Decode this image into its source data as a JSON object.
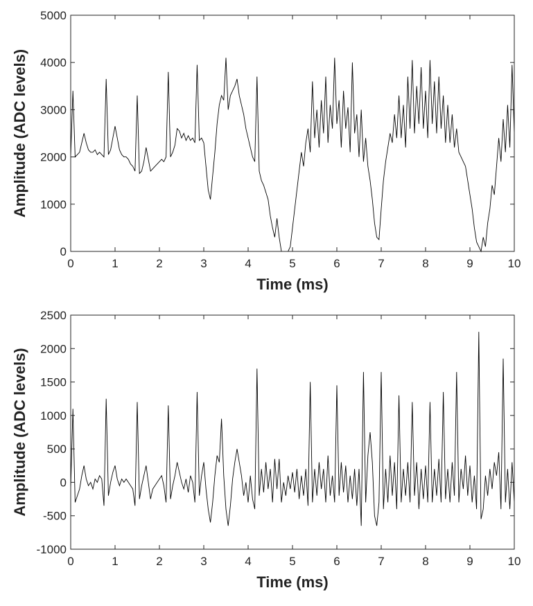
{
  "chart_data": [
    {
      "type": "line",
      "xlabel": "Time (ms)",
      "ylabel": "Amplitude (ADC levels)",
      "color": "#000000",
      "xlim": [
        0,
        10
      ],
      "ylim": [
        0,
        5000
      ],
      "xticks": [
        0,
        1,
        2,
        3,
        4,
        5,
        6,
        7,
        8,
        9,
        10
      ],
      "yticks": [
        0,
        1000,
        2000,
        3000,
        4000,
        5000
      ],
      "x": [
        0,
        0.05,
        0.1,
        0.15,
        0.2,
        0.25,
        0.3,
        0.35,
        0.4,
        0.45,
        0.5,
        0.55,
        0.6,
        0.65,
        0.7,
        0.75,
        0.8,
        0.85,
        0.9,
        0.95,
        1,
        1.05,
        1.1,
        1.15,
        1.2,
        1.25,
        1.3,
        1.35,
        1.4,
        1.45,
        1.5,
        1.55,
        1.6,
        1.65,
        1.7,
        1.75,
        1.8,
        1.85,
        1.9,
        1.95,
        2,
        2.05,
        2.1,
        2.15,
        2.2,
        2.25,
        2.3,
        2.35,
        2.4,
        2.45,
        2.5,
        2.55,
        2.6,
        2.65,
        2.7,
        2.75,
        2.8,
        2.85,
        2.9,
        2.95,
        3,
        3.05,
        3.1,
        3.15,
        3.2,
        3.25,
        3.3,
        3.35,
        3.4,
        3.45,
        3.5,
        3.55,
        3.6,
        3.65,
        3.7,
        3.75,
        3.8,
        3.85,
        3.9,
        3.95,
        4,
        4.05,
        4.1,
        4.15,
        4.2,
        4.25,
        4.3,
        4.35,
        4.4,
        4.45,
        4.5,
        4.55,
        4.6,
        4.65,
        4.7,
        4.75,
        4.8,
        4.85,
        4.9,
        4.95,
        5,
        5.05,
        5.1,
        5.15,
        5.2,
        5.25,
        5.3,
        5.35,
        5.4,
        5.45,
        5.5,
        5.55,
        5.6,
        5.65,
        5.7,
        5.75,
        5.8,
        5.85,
        5.9,
        5.95,
        6,
        6.05,
        6.1,
        6.15,
        6.2,
        6.25,
        6.3,
        6.35,
        6.4,
        6.45,
        6.5,
        6.55,
        6.6,
        6.65,
        6.7,
        6.75,
        6.8,
        6.85,
        6.9,
        6.95,
        7,
        7.05,
        7.1,
        7.15,
        7.2,
        7.25,
        7.3,
        7.35,
        7.4,
        7.45,
        7.5,
        7.55,
        7.6,
        7.65,
        7.7,
        7.75,
        7.8,
        7.85,
        7.9,
        7.95,
        8,
        8.05,
        8.1,
        8.15,
        8.2,
        8.25,
        8.3,
        8.35,
        8.4,
        8.45,
        8.5,
        8.55,
        8.6,
        8.65,
        8.7,
        8.75,
        8.8,
        8.85,
        8.9,
        8.95,
        9,
        9.05,
        9.1,
        9.15,
        9.2,
        9.25,
        9.3,
        9.35,
        9.4,
        9.45,
        9.5,
        9.55,
        9.6,
        9.65,
        9.7,
        9.75,
        9.8,
        9.85,
        9.9,
        9.95,
        10
      ],
      "values": [
        2000,
        3400,
        2000,
        2050,
        2100,
        2300,
        2500,
        2300,
        2150,
        2100,
        2100,
        2150,
        2050,
        2100,
        2050,
        2000,
        3650,
        2050,
        2150,
        2400,
        2650,
        2400,
        2150,
        2050,
        2000,
        2000,
        1950,
        1850,
        1800,
        1700,
        3300,
        1650,
        1700,
        1900,
        2200,
        1950,
        1700,
        1750,
        1800,
        1850,
        1900,
        1950,
        1900,
        2000,
        3800,
        2000,
        2100,
        2250,
        2600,
        2550,
        2400,
        2500,
        2350,
        2450,
        2350,
        2400,
        2300,
        3950,
        2350,
        2400,
        2300,
        1800,
        1300,
        1100,
        1600,
        2100,
        2700,
        3100,
        3300,
        3200,
        4100,
        3000,
        3300,
        3400,
        3500,
        3650,
        3300,
        3100,
        2900,
        2600,
        2400,
        2200,
        2000,
        1900,
        3700,
        1700,
        1500,
        1400,
        1250,
        1100,
        750,
        500,
        300,
        700,
        300,
        0,
        0,
        0,
        0,
        100,
        500,
        900,
        1300,
        1700,
        2100,
        1800,
        2300,
        2600,
        2100,
        3600,
        2400,
        3000,
        2200,
        3200,
        2500,
        3700,
        2300,
        3100,
        2600,
        4100,
        2700,
        3200,
        2200,
        3400,
        2600,
        3050,
        2100,
        4000,
        2500,
        2900,
        2000,
        3000,
        1900,
        2400,
        1800,
        1500,
        1100,
        600,
        300,
        250,
        900,
        1500,
        1900,
        2200,
        2500,
        2300,
        2900,
        2400,
        3300,
        2400,
        3100,
        2200,
        3700,
        2600,
        4050,
        2500,
        3500,
        2700,
        3900,
        2600,
        3400,
        2400,
        4050,
        2700,
        3600,
        2500,
        3700,
        2600,
        3300,
        2300,
        3100,
        2300,
        2900,
        2200,
        2600,
        2100,
        2000,
        1900,
        1800,
        1500,
        1200,
        900,
        500,
        200,
        100,
        0,
        300,
        100,
        600,
        900,
        1400,
        1200,
        1800,
        2400,
        1900,
        2800,
        2100,
        3100,
        2200,
        3950,
        2500
      ]
    },
    {
      "type": "line",
      "xlabel": "Time (ms)",
      "ylabel": "Amplitude (ADC levels)",
      "color": "#000000",
      "xlim": [
        0,
        10
      ],
      "ylim": [
        -1000,
        2500
      ],
      "xticks": [
        0,
        1,
        2,
        3,
        4,
        5,
        6,
        7,
        8,
        9,
        10
      ],
      "yticks": [
        -1000,
        -500,
        0,
        500,
        1000,
        1500,
        2000,
        2500
      ],
      "x": [
        0,
        0.05,
        0.1,
        0.15,
        0.2,
        0.25,
        0.3,
        0.35,
        0.4,
        0.45,
        0.5,
        0.55,
        0.6,
        0.65,
        0.7,
        0.75,
        0.8,
        0.85,
        0.9,
        0.95,
        1,
        1.05,
        1.1,
        1.15,
        1.2,
        1.25,
        1.3,
        1.35,
        1.4,
        1.45,
        1.5,
        1.55,
        1.6,
        1.65,
        1.7,
        1.75,
        1.8,
        1.85,
        1.9,
        1.95,
        2,
        2.05,
        2.1,
        2.15,
        2.2,
        2.25,
        2.3,
        2.35,
        2.4,
        2.45,
        2.5,
        2.55,
        2.6,
        2.65,
        2.7,
        2.75,
        2.8,
        2.85,
        2.9,
        2.95,
        3,
        3.05,
        3.1,
        3.15,
        3.2,
        3.25,
        3.3,
        3.35,
        3.4,
        3.45,
        3.5,
        3.55,
        3.6,
        3.65,
        3.7,
        3.75,
        3.8,
        3.85,
        3.9,
        3.95,
        4,
        4.05,
        4.1,
        4.15,
        4.2,
        4.25,
        4.3,
        4.35,
        4.4,
        4.45,
        4.5,
        4.55,
        4.6,
        4.65,
        4.7,
        4.75,
        4.8,
        4.85,
        4.9,
        4.95,
        5,
        5.05,
        5.1,
        5.15,
        5.2,
        5.25,
        5.3,
        5.35,
        5.4,
        5.45,
        5.5,
        5.55,
        5.6,
        5.65,
        5.7,
        5.75,
        5.8,
        5.85,
        5.9,
        5.95,
        6,
        6.05,
        6.1,
        6.15,
        6.2,
        6.25,
        6.3,
        6.35,
        6.4,
        6.45,
        6.5,
        6.55,
        6.6,
        6.65,
        6.7,
        6.75,
        6.8,
        6.85,
        6.9,
        6.95,
        7,
        7.05,
        7.1,
        7.15,
        7.2,
        7.25,
        7.3,
        7.35,
        7.4,
        7.45,
        7.5,
        7.55,
        7.6,
        7.65,
        7.7,
        7.75,
        7.8,
        7.85,
        7.9,
        7.95,
        8,
        8.05,
        8.1,
        8.15,
        8.2,
        8.25,
        8.3,
        8.35,
        8.4,
        8.45,
        8.5,
        8.55,
        8.6,
        8.65,
        8.7,
        8.75,
        8.8,
        8.85,
        8.9,
        8.95,
        9,
        9.05,
        9.1,
        9.15,
        9.2,
        9.25,
        9.3,
        9.35,
        9.4,
        9.45,
        9.5,
        9.55,
        9.6,
        9.65,
        9.7,
        9.75,
        9.8,
        9.85,
        9.9,
        9.95,
        10
      ],
      "values": [
        -100,
        1100,
        -300,
        -200,
        -100,
        100,
        250,
        50,
        -50,
        0,
        -100,
        50,
        0,
        100,
        50,
        -350,
        1250,
        -200,
        0,
        150,
        250,
        50,
        -50,
        50,
        0,
        50,
        0,
        -50,
        -100,
        -350,
        1200,
        -250,
        -50,
        100,
        250,
        0,
        -250,
        -100,
        -50,
        0,
        50,
        100,
        -50,
        -300,
        1150,
        -250,
        -50,
        100,
        300,
        150,
        0,
        -100,
        50,
        -150,
        100,
        0,
        -300,
        1350,
        -200,
        100,
        300,
        -100,
        -400,
        -600,
        -300,
        100,
        400,
        300,
        950,
        100,
        -400,
        -650,
        -350,
        50,
        300,
        500,
        300,
        100,
        -200,
        0,
        -300,
        100,
        -250,
        -400,
        1700,
        -200,
        200,
        -150,
        300,
        -100,
        200,
        -300,
        350,
        -100,
        350,
        -300,
        0,
        -200,
        100,
        -100,
        150,
        -150,
        200,
        -250,
        100,
        -200,
        200,
        -350,
        1500,
        -300,
        200,
        -200,
        300,
        -100,
        200,
        -300,
        400,
        -200,
        100,
        -300,
        1450,
        -200,
        300,
        -150,
        250,
        -300,
        100,
        -250,
        200,
        -350,
        200,
        -650,
        1650,
        -300,
        400,
        750,
        300,
        -500,
        -650,
        -300,
        1650,
        -400,
        200,
        -300,
        400,
        -200,
        300,
        -400,
        1300,
        -300,
        200,
        -200,
        300,
        -300,
        1200,
        -200,
        300,
        -400,
        200,
        -250,
        250,
        -300,
        1200,
        -300,
        200,
        -200,
        350,
        -300,
        1350,
        -250,
        200,
        -300,
        300,
        -200,
        1650,
        -300,
        200,
        -100,
        400,
        -200,
        250,
        -300,
        100,
        -400,
        2250,
        -550,
        -400,
        100,
        -200,
        200,
        -100,
        300,
        100,
        450,
        -400,
        1850,
        -300,
        200,
        -400,
        300,
        -300
      ]
    }
  ]
}
